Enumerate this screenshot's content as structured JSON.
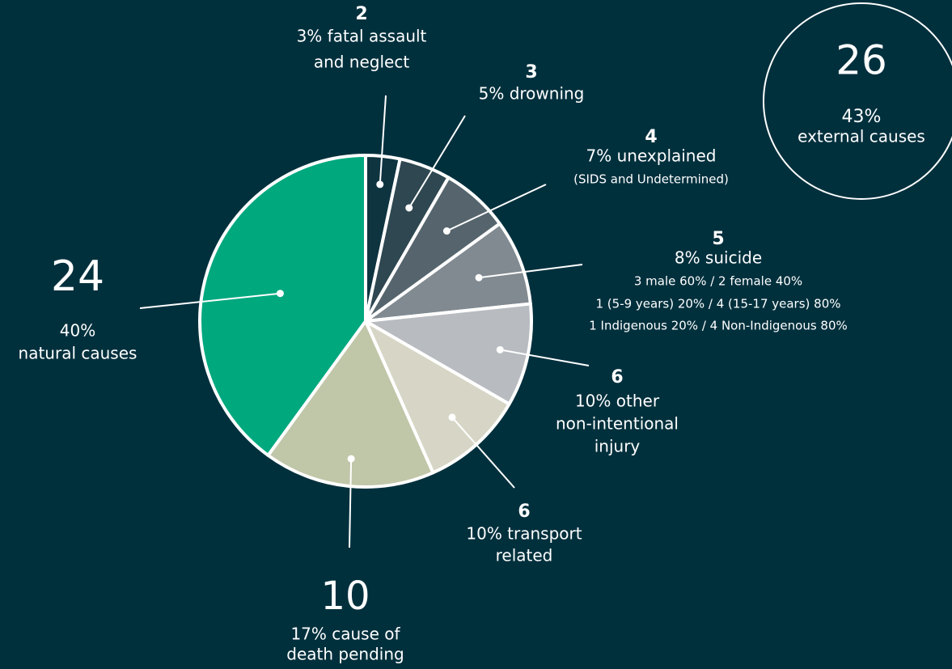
{
  "chart_data": {
    "type": "pie",
    "values": [
      2,
      3,
      4,
      5,
      6,
      6,
      10,
      24
    ],
    "labels": [
      [
        "3% fatal assault",
        "and neglect"
      ],
      [
        "5% drowning"
      ],
      [
        "7% unexplained"
      ],
      [
        "8% suicide"
      ],
      [
        "10% other",
        "non-intentional",
        "injury"
      ],
      [
        "10% transport",
        "related"
      ],
      [
        "17% cause of",
        "death pending"
      ],
      [
        "40%",
        "natural causes"
      ]
    ],
    "notes": [
      [],
      [],
      [
        "(SIDS and Undetermined)"
      ],
      [
        "3 male 60% / 2 female 40%",
        "1 (5-9 years) 20% / 4 (15-17 years) 80%",
        "1 Indigenous 20% / 4 Non-Indigenous 80%"
      ],
      [],
      [],
      [],
      []
    ],
    "colors": [
      "#0e3440",
      "#2f4750",
      "#56656d",
      "#818a91",
      "#b8bcc0",
      "#d7d6c6",
      "#c0c6a8",
      "#00a87e"
    ],
    "annotation": {
      "count": 26,
      "lines": [
        "43%",
        "external causes"
      ]
    }
  }
}
